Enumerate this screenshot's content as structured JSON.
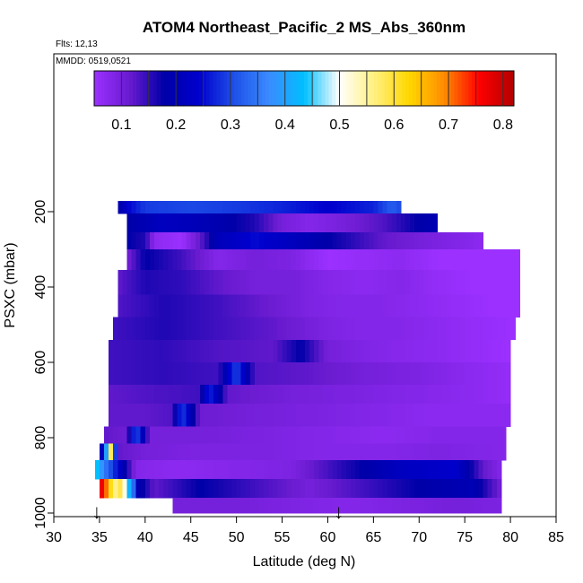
{
  "chart_data": {
    "type": "heatmap",
    "title": "ATOM4 Northeast_Pacific_2 MS_Abs_360nm",
    "annotations": [
      "Flts: 12,13",
      "MMDD: 0519,0521"
    ],
    "xlabel": "Latitude (deg N)",
    "ylabel": "PSXC (mbar)",
    "xlim": [
      30,
      85
    ],
    "ylim": [
      1000,
      70
    ],
    "x_ticks": [
      30,
      35,
      40,
      45,
      50,
      55,
      60,
      65,
      70,
      75,
      80,
      85
    ],
    "y_ticks": [
      200,
      400,
      600,
      800,
      1000
    ],
    "colorbar": {
      "range": [
        0.05,
        0.82
      ],
      "ticks": [
        0.1,
        0.2,
        0.3,
        0.4,
        0.5,
        0.6,
        0.7,
        0.8
      ],
      "colors": [
        "#9b30ff",
        "#6a1bd0",
        "#0000a8",
        "#0000cd",
        "#1e50e8",
        "#3a8bff",
        "#00bfff",
        "#ffffff",
        "#fff080",
        "#ffd700",
        "#ff8c00",
        "#ff0000",
        "#b20000"
      ]
    },
    "markers": [
      {
        "latitude": 34.7,
        "label": "↓"
      },
      {
        "latitude": 61.2,
        "label": "↓"
      }
    ],
    "bands": [
      {
        "pmin": 172,
        "pmax": 205,
        "lat0": 37,
        "lat1": 68,
        "profile": [
          [
            37,
            0.17
          ],
          [
            38,
            0.24
          ],
          [
            40,
            0.29
          ],
          [
            45,
            0.3
          ],
          [
            50,
            0.29
          ],
          [
            55,
            0.27
          ],
          [
            60,
            0.24
          ],
          [
            65,
            0.27
          ],
          [
            67,
            0.32
          ],
          [
            68,
            0.3
          ]
        ]
      },
      {
        "pmin": 205,
        "pmax": 255,
        "lat0": 38,
        "lat1": 72,
        "profile": [
          [
            38,
            0.18
          ],
          [
            42,
            0.22
          ],
          [
            47,
            0.2
          ],
          [
            52,
            0.16
          ],
          [
            55,
            0.1
          ],
          [
            58,
            0.08
          ],
          [
            62,
            0.1
          ],
          [
            66,
            0.13
          ],
          [
            70,
            0.18
          ],
          [
            72,
            0.2
          ]
        ]
      },
      {
        "pmin": 255,
        "pmax": 300,
        "lat0": 38,
        "lat1": 77,
        "profile": [
          [
            38,
            0.18
          ],
          [
            40,
            0.16
          ],
          [
            41,
            0.07
          ],
          [
            44,
            0.05
          ],
          [
            46,
            0.12
          ],
          [
            48,
            0.21
          ],
          [
            52,
            0.25
          ],
          [
            58,
            0.2
          ],
          [
            62,
            0.16
          ],
          [
            66,
            0.12
          ],
          [
            70,
            0.1
          ],
          [
            75,
            0.08
          ],
          [
            77,
            0.07
          ]
        ]
      },
      {
        "pmin": 300,
        "pmax": 355,
        "lat0": 38,
        "lat1": 81,
        "profile": [
          [
            38,
            0.1
          ],
          [
            40,
            0.18
          ],
          [
            44,
            0.14
          ],
          [
            48,
            0.08
          ],
          [
            52,
            0.1
          ],
          [
            56,
            0.09
          ],
          [
            60,
            0.05
          ],
          [
            64,
            0.06
          ],
          [
            68,
            0.07
          ],
          [
            72,
            0.05
          ],
          [
            76,
            0.04
          ],
          [
            81,
            0.03
          ]
        ]
      },
      {
        "pmin": 355,
        "pmax": 420,
        "lat0": 37,
        "lat1": 81,
        "profile": [
          [
            37,
            0.12
          ],
          [
            40,
            0.16
          ],
          [
            44,
            0.15
          ],
          [
            48,
            0.12
          ],
          [
            52,
            0.1
          ],
          [
            56,
            0.1
          ],
          [
            60,
            0.08
          ],
          [
            64,
            0.07
          ],
          [
            68,
            0.08
          ],
          [
            72,
            0.06
          ],
          [
            76,
            0.05
          ],
          [
            81,
            0.04
          ]
        ]
      },
      {
        "pmin": 420,
        "pmax": 480,
        "lat0": 37,
        "lat1": 81,
        "profile": [
          [
            37,
            0.13
          ],
          [
            42,
            0.16
          ],
          [
            48,
            0.14
          ],
          [
            54,
            0.11
          ],
          [
            58,
            0.09
          ],
          [
            62,
            0.08
          ],
          [
            66,
            0.08
          ],
          [
            70,
            0.07
          ],
          [
            74,
            0.06
          ],
          [
            78,
            0.05
          ],
          [
            81,
            0.04
          ]
        ]
      },
      {
        "pmin": 480,
        "pmax": 540,
        "lat0": 36.5,
        "lat1": 80.5,
        "profile": [
          [
            36.5,
            0.14
          ],
          [
            42,
            0.16
          ],
          [
            48,
            0.14
          ],
          [
            54,
            0.12
          ],
          [
            60,
            0.09
          ],
          [
            64,
            0.08
          ],
          [
            68,
            0.08
          ],
          [
            72,
            0.07
          ],
          [
            76,
            0.06
          ],
          [
            80.5,
            0.05
          ]
        ]
      },
      {
        "pmin": 540,
        "pmax": 600,
        "lat0": 36,
        "lat1": 80,
        "profile": [
          [
            36,
            0.14
          ],
          [
            42,
            0.15
          ],
          [
            48,
            0.13
          ],
          [
            54,
            0.12
          ],
          [
            57,
            0.18
          ],
          [
            60,
            0.1
          ],
          [
            66,
            0.08
          ],
          [
            72,
            0.07
          ],
          [
            76,
            0.06
          ],
          [
            80,
            0.05
          ]
        ]
      },
      {
        "pmin": 600,
        "pmax": 660,
        "lat0": 36,
        "lat1": 80,
        "profile": [
          [
            36,
            0.14
          ],
          [
            42,
            0.15
          ],
          [
            48,
            0.14
          ],
          [
            50,
            0.3
          ],
          [
            52,
            0.13
          ],
          [
            58,
            0.12
          ],
          [
            64,
            0.1
          ],
          [
            70,
            0.09
          ],
          [
            76,
            0.07
          ],
          [
            80,
            0.06
          ]
        ]
      },
      {
        "pmin": 660,
        "pmax": 710,
        "lat0": 36,
        "lat1": 80,
        "profile": [
          [
            36,
            0.12
          ],
          [
            40,
            0.13
          ],
          [
            46,
            0.14
          ],
          [
            47,
            0.28
          ],
          [
            49,
            0.12
          ],
          [
            56,
            0.1
          ],
          [
            64,
            0.09
          ],
          [
            70,
            0.08
          ],
          [
            76,
            0.07
          ],
          [
            80,
            0.06
          ]
        ]
      },
      {
        "pmin": 710,
        "pmax": 770,
        "lat0": 36,
        "lat1": 80,
        "profile": [
          [
            36,
            0.12
          ],
          [
            40,
            0.12
          ],
          [
            43,
            0.13
          ],
          [
            44,
            0.3
          ],
          [
            46,
            0.11
          ],
          [
            52,
            0.1
          ],
          [
            60,
            0.09
          ],
          [
            66,
            0.08
          ],
          [
            72,
            0.07
          ],
          [
            80,
            0.07
          ]
        ]
      },
      {
        "pmin": 770,
        "pmax": 815,
        "lat0": 35.5,
        "lat1": 79.5,
        "profile": [
          [
            35.5,
            0.12
          ],
          [
            38,
            0.11
          ],
          [
            39,
            0.32
          ],
          [
            40.5,
            0.1
          ],
          [
            46,
            0.1
          ],
          [
            54,
            0.09
          ],
          [
            60,
            0.08
          ],
          [
            66,
            0.07
          ],
          [
            72,
            0.08
          ],
          [
            79.5,
            0.08
          ]
        ]
      },
      {
        "pmin": 815,
        "pmax": 860,
        "lat0": 35,
        "lat1": 79.5,
        "profile": [
          [
            35,
            0.12
          ],
          [
            36.3,
            0.6
          ],
          [
            37,
            0.12
          ],
          [
            40,
            0.1
          ],
          [
            46,
            0.09
          ],
          [
            54,
            0.09
          ],
          [
            60,
            0.08
          ],
          [
            66,
            0.08
          ],
          [
            72,
            0.09
          ],
          [
            79.5,
            0.08
          ]
        ]
      },
      {
        "pmin": 860,
        "pmax": 910,
        "lat0": 34.5,
        "lat1": 79,
        "profile": [
          [
            34.5,
            0.46
          ],
          [
            35.5,
            0.36
          ],
          [
            37,
            0.25
          ],
          [
            39,
            0.08
          ],
          [
            44,
            0.07
          ],
          [
            50,
            0.08
          ],
          [
            56,
            0.09
          ],
          [
            62,
            0.16
          ],
          [
            68,
            0.22
          ],
          [
            74,
            0.24
          ],
          [
            77,
            0.12
          ],
          [
            79,
            0.08
          ]
        ]
      },
      {
        "pmin": 910,
        "pmax": 960,
        "lat0": 35,
        "lat1": 79,
        "profile": [
          [
            35,
            0.8
          ],
          [
            35.8,
            0.7
          ],
          [
            36.6,
            0.55
          ],
          [
            37.4,
            0.6
          ],
          [
            38,
            0.45
          ],
          [
            38.6,
            0.38
          ],
          [
            39.2,
            0.2
          ],
          [
            41,
            0.12
          ],
          [
            46,
            0.18
          ],
          [
            52,
            0.14
          ],
          [
            58,
            0.1
          ],
          [
            64,
            0.14
          ],
          [
            70,
            0.18
          ],
          [
            76,
            0.2
          ],
          [
            79,
            0.1
          ]
        ]
      },
      {
        "pmin": 960,
        "pmax": 1000,
        "lat0": 43,
        "lat1": 79,
        "profile": [
          [
            43,
            0.1
          ],
          [
            50,
            0.1
          ],
          [
            56,
            0.09
          ],
          [
            62,
            0.08
          ],
          [
            68,
            0.09
          ],
          [
            74,
            0.1
          ],
          [
            79,
            0.09
          ]
        ]
      }
    ],
    "grid": false,
    "legend": "top (colorbar)"
  }
}
